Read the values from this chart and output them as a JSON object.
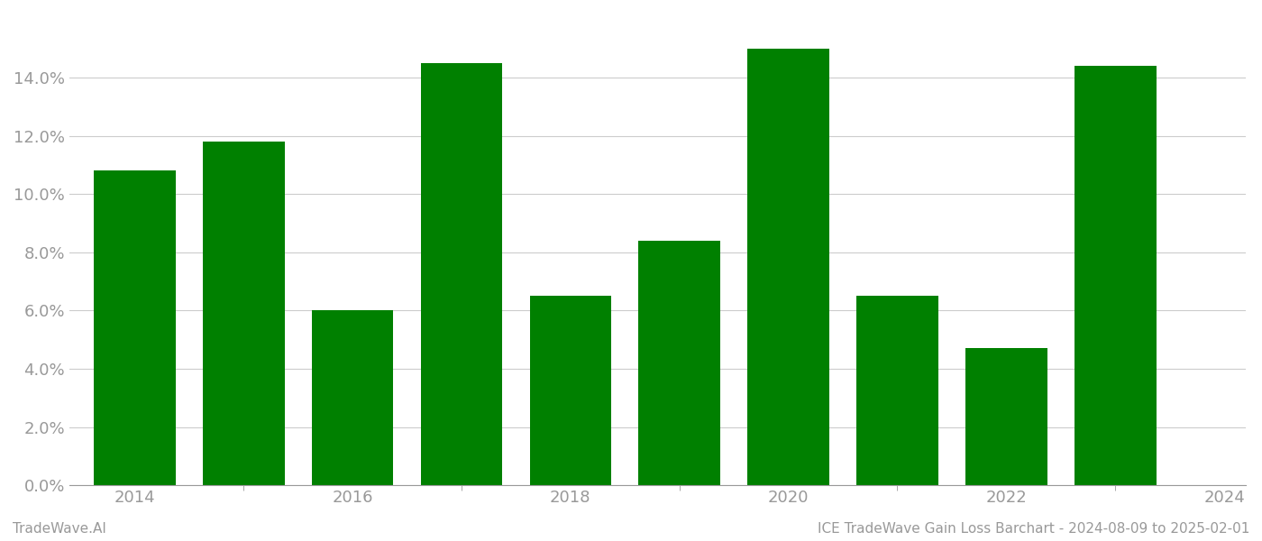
{
  "years": [
    2014,
    2015,
    2016,
    2017,
    2018,
    2019,
    2020,
    2021,
    2022,
    2023
  ],
  "values": [
    0.108,
    0.118,
    0.06,
    0.145,
    0.065,
    0.084,
    0.15,
    0.065,
    0.047,
    0.144
  ],
  "bar_color": "#008000",
  "background_color": "#ffffff",
  "grid_color": "#cccccc",
  "axis_color": "#999999",
  "tick_label_color": "#999999",
  "ylim": [
    0,
    0.162
  ],
  "yticks": [
    0.0,
    0.02,
    0.04,
    0.06,
    0.08,
    0.1,
    0.12,
    0.14
  ],
  "xtick_positions": [
    0,
    2,
    4,
    6,
    8,
    10
  ],
  "xtick_labels": [
    "2014",
    "2016",
    "2018",
    "2020",
    "2022",
    "2024"
  ],
  "footer_left": "TradeWave.AI",
  "footer_right": "ICE TradeWave Gain Loss Barchart - 2024-08-09 to 2025-02-01",
  "footer_color": "#999999",
  "footer_fontsize": 11
}
